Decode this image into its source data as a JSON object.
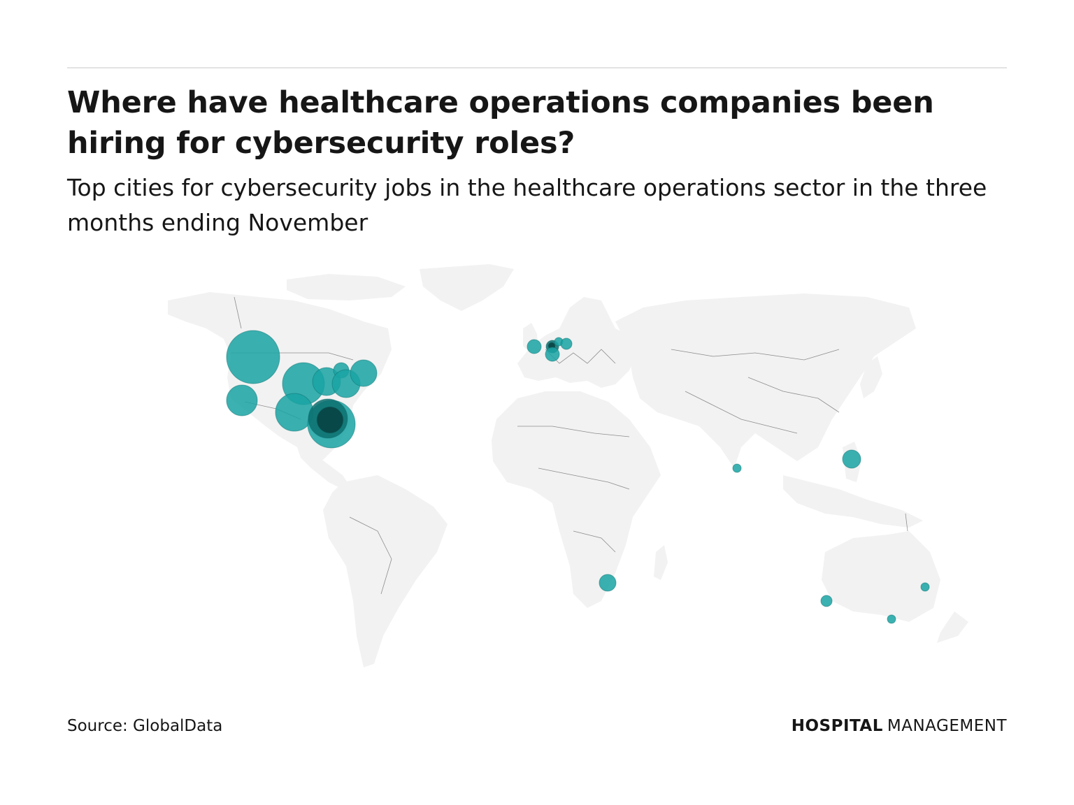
{
  "header": {
    "title": "Where have healthcare operations companies been hiring for cybersecurity roles?",
    "subtitle": "Top cities for cybersecurity jobs in the healthcare operations sector in the three months ending November"
  },
  "footer": {
    "source": "Source: GlobalData",
    "brand_bold": "HOSPITAL",
    "brand_regular": "MANAGEMENT"
  },
  "map": {
    "land_color": "#f2f2f2",
    "border_color": "#3a3a3a",
    "bubble_color": "#1aa3a3",
    "bubble_opacity": 0.85
  }
}
